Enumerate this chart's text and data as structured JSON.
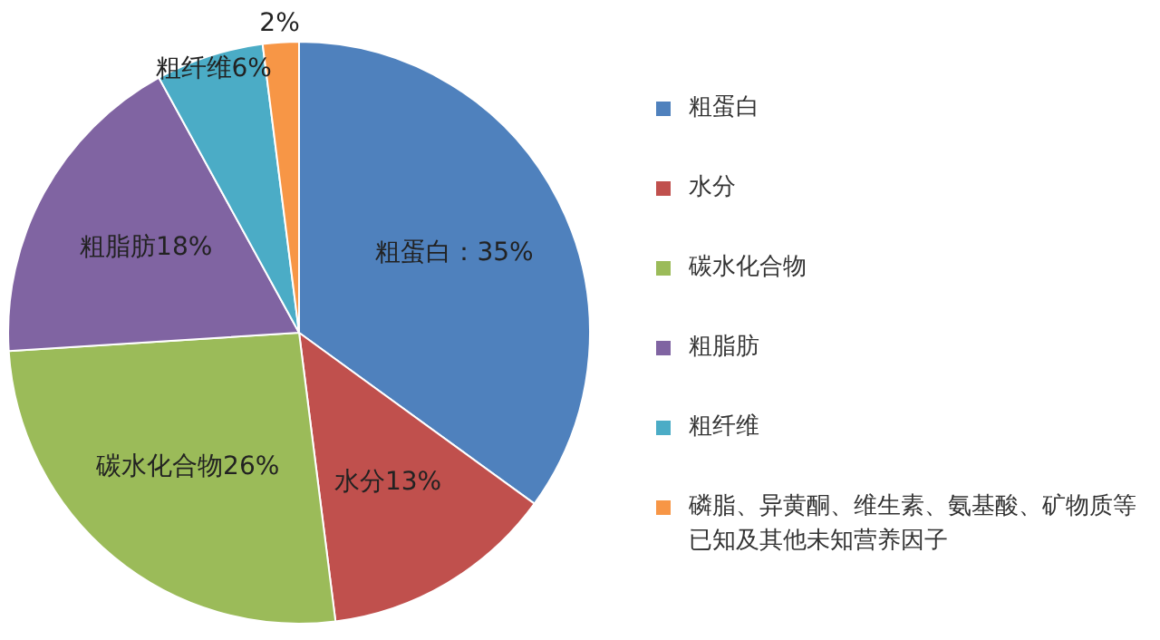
{
  "chart_data": {
    "type": "pie",
    "categories": [
      "粗蛋白",
      "水分",
      "碳水化合物",
      "粗脂肪",
      "粗纤维",
      "磷脂、异黄酮、维生素、氨基酸、矿物质等已知及其他未知营养因子"
    ],
    "values": [
      35,
      13,
      26,
      18,
      6,
      2
    ],
    "colors": [
      "#4f81bd",
      "#c0504d",
      "#9bbb59",
      "#8064a2",
      "#4bacc6",
      "#f79646"
    ],
    "value_labels": [
      "粗蛋白：35%",
      "水分13%",
      "碳水化合物26%",
      "粗脂肪18%",
      "粗纤维6%",
      "2%"
    ],
    "legend": "right"
  }
}
